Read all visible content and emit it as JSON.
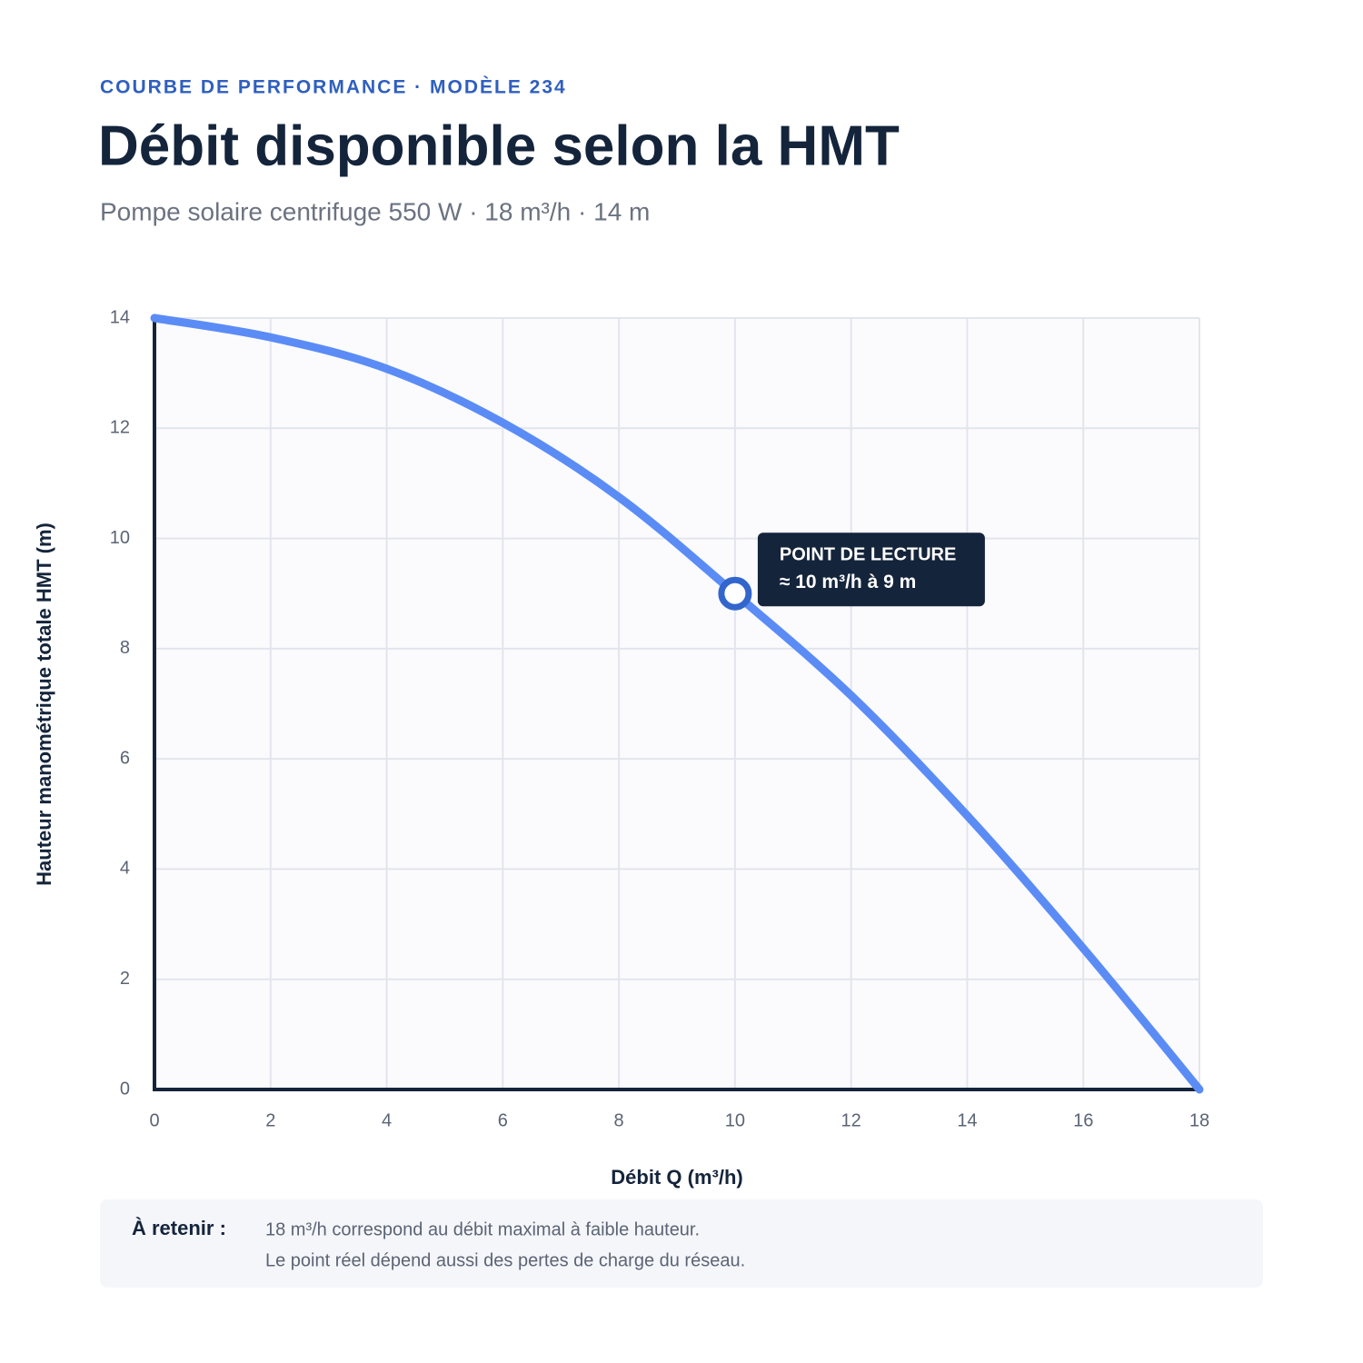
{
  "chart_data": {
    "type": "line",
    "kicker": "COURBE DE PERFORMANCE · MODÈLE 234",
    "title": "Débit disponible selon la HMT",
    "subtitle": "Pompe solaire centrifuge 550 W · 18 m³/h · 14 m",
    "x_label": "Débit Q (m³/h)",
    "y_label": "Hauteur manométrique totale HMT (m)",
    "x": [
      0,
      2,
      4,
      6,
      8,
      10,
      12,
      14,
      16,
      18
    ],
    "series": [
      {
        "color": "#5b8cf6",
        "values": [
          14,
          13.65,
          13.08,
          12.1,
          10.75,
          9,
          7.15,
          4.97,
          2.56,
          0
        ]
      }
    ],
    "xlim": [
      0,
      18
    ],
    "xticks": [
      0,
      2,
      4,
      6,
      8,
      10,
      12,
      14,
      16,
      18
    ],
    "ylim": [
      0,
      14
    ],
    "yticks": [
      0,
      2,
      4,
      6,
      8,
      10,
      12,
      14
    ],
    "grid": true,
    "annotation": {
      "x": 10,
      "y": 9,
      "title": "POINT DE LECTURE",
      "label": "≈ 10 m³/h à 9 m"
    }
  },
  "note": {
    "label": "À retenir :",
    "lines": [
      "18 m³/h correspond au débit maximal à faible hauteur.",
      "Le point réel dépend aussi des pertes de charge du réseau."
    ]
  }
}
